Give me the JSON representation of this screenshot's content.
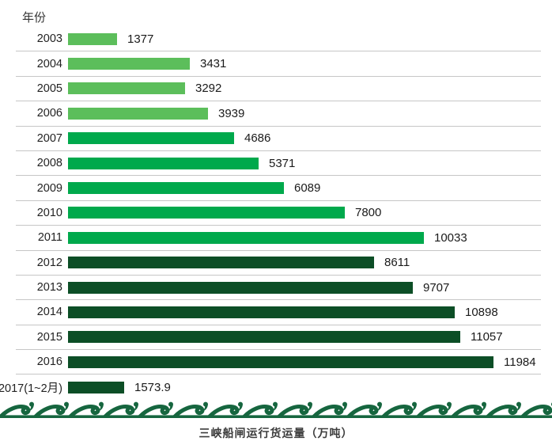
{
  "y_axis_title": "年份",
  "title": "三峡船闸运行货运量（万吨）",
  "colors": {
    "light_green": "#5CBE5B",
    "medium_green": "#00A94C",
    "dark_green": "#0C4E26",
    "wave_green": "#16663F",
    "gridline": "#C6C6C6",
    "text": "#262626"
  },
  "chart_data": {
    "type": "bar",
    "orientation": "horizontal",
    "title": "三峡船闸运行货运量（万吨）",
    "ylabel": "年份",
    "xlabel": "",
    "legend": "none",
    "grid": "horizontal-row-separators",
    "max_value": 11984,
    "xlim": [
      0,
      11984
    ],
    "categories": [
      "2003",
      "2004",
      "2005",
      "2006",
      "2007",
      "2008",
      "2009",
      "2010",
      "2011",
      "2012",
      "2013",
      "2014",
      "2015",
      "2016",
      "2017(1~2月)"
    ],
    "values": [
      1377,
      3431,
      3292,
      3939,
      4686,
      5371,
      6089,
      7800,
      10033,
      8611,
      9707,
      10898,
      11057,
      11984,
      1573.9
    ],
    "rows": [
      {
        "label": "2003",
        "value": 1377,
        "display": "1377",
        "tier": "light"
      },
      {
        "label": "2004",
        "value": 3431,
        "display": "3431",
        "tier": "light"
      },
      {
        "label": "2005",
        "value": 3292,
        "display": "3292",
        "tier": "light"
      },
      {
        "label": "2006",
        "value": 3939,
        "display": "3939",
        "tier": "light"
      },
      {
        "label": "2007",
        "value": 4686,
        "display": "4686",
        "tier": "medium"
      },
      {
        "label": "2008",
        "value": 5371,
        "display": "5371",
        "tier": "medium"
      },
      {
        "label": "2009",
        "value": 6089,
        "display": "6089",
        "tier": "medium"
      },
      {
        "label": "2010",
        "value": 7800,
        "display": "7800",
        "tier": "medium"
      },
      {
        "label": "2011",
        "value": 10033,
        "display": "10033",
        "tier": "medium"
      },
      {
        "label": "2012",
        "value": 8611,
        "display": "8611",
        "tier": "dark"
      },
      {
        "label": "2013",
        "value": 9707,
        "display": "9707",
        "tier": "dark"
      },
      {
        "label": "2014",
        "value": 10898,
        "display": "10898",
        "tier": "dark"
      },
      {
        "label": "2015",
        "value": 11057,
        "display": "11057",
        "tier": "dark"
      },
      {
        "label": "2016",
        "value": 11984,
        "display": "11984",
        "tier": "dark"
      },
      {
        "label": "2017(1~2月)",
        "value": 1573.9,
        "display": "1573.9",
        "tier": "dark"
      }
    ]
  }
}
